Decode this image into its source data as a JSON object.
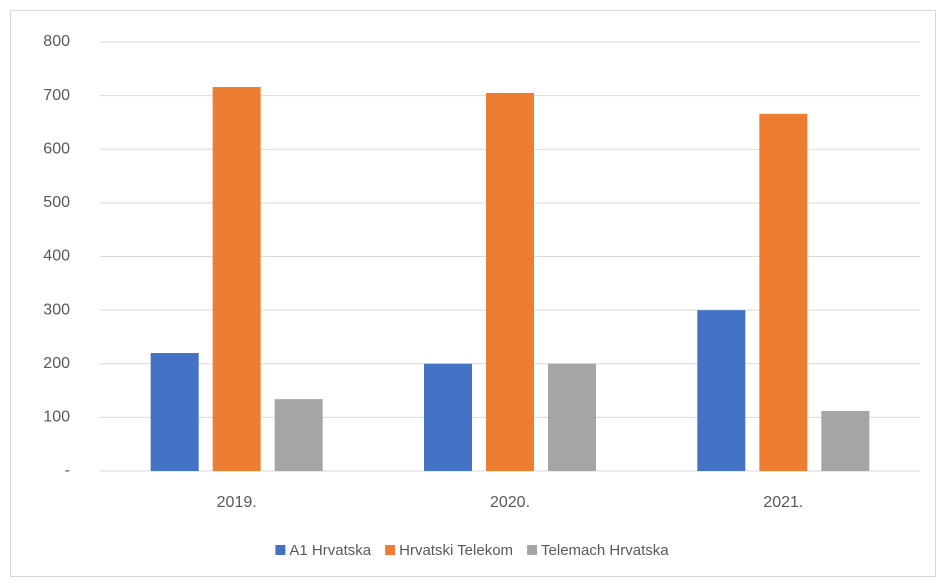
{
  "chart_data": {
    "type": "bar",
    "categories": [
      "2019.",
      "2020.",
      "2021."
    ],
    "series": [
      {
        "name": "A1 Hrvatska",
        "color": "#4472c4",
        "values": [
          220,
          200,
          300
        ]
      },
      {
        "name": "Hrvatski Telekom",
        "color": "#ed7d31",
        "values": [
          716,
          705,
          666
        ]
      },
      {
        "name": "Telemach Hrvatska",
        "color": "#a5a5a5",
        "values": [
          134,
          200,
          112
        ]
      }
    ],
    "ylim": [
      0,
      800
    ],
    "yticks": [
      {
        "value": 0,
        "label": "-"
      },
      100,
      200,
      300,
      400,
      500,
      600,
      700,
      800
    ],
    "grid": true,
    "legend": "bottom"
  }
}
